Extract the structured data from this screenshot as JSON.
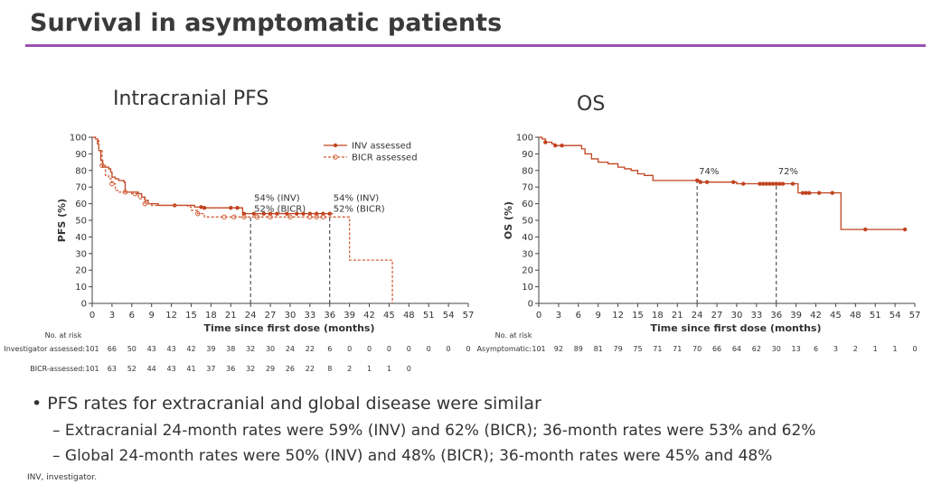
{
  "slide": {
    "title": "Survival in asymptomatic patients",
    "accent_color": "#9b4fb0",
    "bullet": "PFS rates for extracranial and global disease were similar",
    "sub_bullets": [
      "Extracranial 24-month rates were 59% (INV) and 62% (BICR); 36-month rates were 53% and 62%",
      "Global 24-month rates were 50% (INV) and 48% (BICR); 36-month rates were 45% and 48%"
    ],
    "footnote": "INV, investigator."
  },
  "chart_data": [
    {
      "type": "line",
      "step": true,
      "title": "Intracranial PFS",
      "xlabel": "Time since first dose (months)",
      "ylabel": "PFS (%)",
      "xlim": [
        0,
        57
      ],
      "ylim": [
        0,
        100
      ],
      "xticks": [
        0,
        3,
        6,
        9,
        12,
        15,
        18,
        21,
        24,
        27,
        30,
        33,
        36,
        39,
        42,
        45,
        48,
        51,
        54,
        57
      ],
      "yticks": [
        0,
        10,
        20,
        30,
        40,
        50,
        60,
        70,
        80,
        90,
        100
      ],
      "legend_position": "top-right",
      "series": [
        {
          "name": "INV assessed",
          "color": "#c0431f",
          "dashed": false,
          "x": [
            0,
            0.5,
            0.8,
            1,
            1.3,
            1.6,
            2.5,
            2.8,
            3,
            3.5,
            4,
            4.8,
            5,
            7,
            7.5,
            8,
            8.5,
            10,
            15,
            15.5,
            17,
            22.5,
            22.8,
            36.5
          ],
          "y": [
            100,
            99,
            96,
            92,
            86,
            82,
            81,
            79,
            76,
            75,
            74,
            73,
            67,
            66,
            64,
            62,
            60,
            59,
            59,
            58,
            57.5,
            57.5,
            54,
            54
          ],
          "censor_x": [
            12.5,
            16.5,
            17,
            21,
            22,
            23,
            24.5,
            26,
            27,
            28,
            29.5,
            31,
            32,
            33,
            34,
            35,
            36
          ]
        },
        {
          "name": "BICR assessed",
          "color": "#d2603a",
          "dashed": true,
          "x": [
            0,
            0.5,
            1,
            1.5,
            2,
            2.5,
            3,
            3.5,
            4,
            6,
            7,
            8,
            9,
            14.5,
            15,
            16,
            17,
            39,
            39,
            45.5,
            45.5
          ],
          "y": [
            100,
            99,
            92,
            83,
            77,
            75,
            72,
            68,
            67,
            66,
            63,
            60,
            59,
            58,
            56,
            54,
            52,
            52,
            26,
            26,
            0
          ],
          "censor_x": [
            1.5,
            3,
            5,
            6.5,
            8,
            16,
            20,
            21.5,
            23,
            25,
            27,
            30,
            33,
            34,
            35
          ]
        }
      ],
      "annotations": [
        {
          "x": 24,
          "lines": [
            "54% (INV)",
            "52% (BICR)"
          ]
        },
        {
          "x": 36,
          "lines": [
            "54% (INV)",
            "52% (BICR)"
          ]
        }
      ],
      "at_risk": {
        "label": "No. at risk",
        "rows": [
          {
            "name": "Investigator assessed:",
            "values": [
              101,
              66,
              50,
              43,
              43,
              42,
              39,
              38,
              32,
              30,
              24,
              22,
              6,
              0,
              0,
              0,
              0,
              0,
              0,
              0
            ]
          },
          {
            "name": "BICR-assessed:",
            "values": [
              101,
              63,
              52,
              44,
              43,
              41,
              37,
              36,
              32,
              29,
              26,
              22,
              8,
              2,
              1,
              1,
              0
            ]
          }
        ]
      }
    },
    {
      "type": "line",
      "step": true,
      "title": "OS",
      "xlabel": "Time since first dose (months)",
      "ylabel": "OS (%)",
      "xlim": [
        0,
        57
      ],
      "ylim": [
        0,
        100
      ],
      "xticks": [
        0,
        3,
        6,
        9,
        12,
        15,
        18,
        21,
        24,
        27,
        30,
        33,
        36,
        39,
        42,
        45,
        48,
        51,
        54,
        57
      ],
      "yticks": [
        0,
        10,
        20,
        30,
        40,
        50,
        60,
        70,
        80,
        90,
        100
      ],
      "series": [
        {
          "color": "#c0431f",
          "dashed": false,
          "x": [
            0,
            0.5,
            1,
            2,
            2.5,
            6,
            6.5,
            7,
            8,
            9,
            10.5,
            12,
            13,
            14,
            15,
            16,
            17,
            17.3,
            24,
            24.5,
            29.5,
            30,
            39,
            39.3,
            45.5,
            45.8,
            55.5
          ],
          "y": [
            100,
            99,
            97,
            96,
            95,
            95,
            93,
            90,
            87,
            85,
            84,
            82,
            81,
            80,
            78,
            77,
            77,
            74,
            74,
            73,
            73,
            72,
            72,
            66.5,
            66.5,
            44.5,
            44.5
          ],
          "censor_x": [
            1,
            2.5,
            3.5,
            24,
            24.5,
            25.5,
            29.5,
            31,
            33.5,
            34,
            34.5,
            35,
            35.5,
            36,
            36.5,
            37,
            38.5,
            40,
            40.5,
            41,
            42.5,
            44.5,
            49.5,
            55.5
          ]
        }
      ],
      "annotations": [
        {
          "x": 24,
          "lines": [
            "74%"
          ]
        },
        {
          "x": 36,
          "lines": [
            "72%"
          ]
        }
      ],
      "at_risk": {
        "label": "No. at risk",
        "rows": [
          {
            "name": "Asymptomatic:",
            "values": [
              101,
              92,
              89,
              81,
              79,
              75,
              71,
              71,
              70,
              66,
              64,
              62,
              30,
              13,
              6,
              3,
              2,
              1,
              1,
              0
            ]
          }
        ]
      }
    }
  ]
}
